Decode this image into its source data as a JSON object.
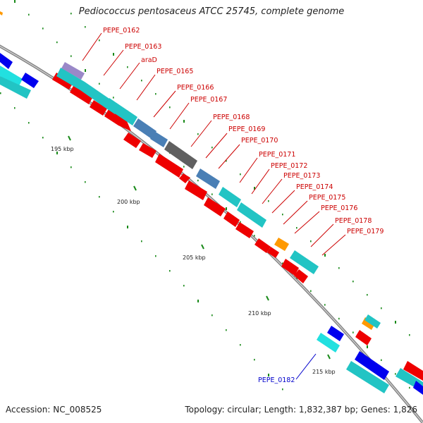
{
  "title": "Pediococcus pentosaceus ATCC 25745, complete genome",
  "footer": {
    "accession": "Accession: NC_008525",
    "summary": "Topology: circular; Length: 1,832,387 bp; Genes: 1,826"
  },
  "ticks": [
    {
      "label": "195 kbp"
    },
    {
      "label": "200 kbp"
    },
    {
      "label": "205 kbp"
    },
    {
      "label": "210 kbp"
    },
    {
      "label": "215 kbp"
    }
  ],
  "genes": [
    {
      "label": "PEPE_0162",
      "color": "#cc0000"
    },
    {
      "label": "PEPE_0163",
      "color": "#cc0000"
    },
    {
      "label": "araD",
      "color": "#cc0000"
    },
    {
      "label": "PEPE_0165",
      "color": "#cc0000"
    },
    {
      "label": "PEPE_0166",
      "color": "#cc0000"
    },
    {
      "label": "PEPE_0167",
      "color": "#cc0000"
    },
    {
      "label": "PEPE_0168",
      "color": "#cc0000"
    },
    {
      "label": "PEPE_0169",
      "color": "#cc0000"
    },
    {
      "label": "PEPE_0170",
      "color": "#cc0000"
    },
    {
      "label": "PEPE_0171",
      "color": "#cc0000"
    },
    {
      "label": "PEPE_0172",
      "color": "#cc0000"
    },
    {
      "label": "PEPE_0173",
      "color": "#cc0000"
    },
    {
      "label": "PEPE_0174",
      "color": "#cc0000"
    },
    {
      "label": "PEPE_0175",
      "color": "#cc0000"
    },
    {
      "label": "PEPE_0176",
      "color": "#cc0000"
    },
    {
      "label": "PEPE_0178",
      "color": "#cc0000"
    },
    {
      "label": "PEPE_0179",
      "color": "#cc0000"
    },
    {
      "label": "PEPE_0182",
      "color": "#0000cc"
    }
  ],
  "colors": {
    "backbone": "#808080",
    "forward_cds": "#ee0000",
    "reverse_cds": "#0000ee",
    "cyan_track": "#22c4c4",
    "steel_track": "#4a7fb5",
    "gray_track": "#606060",
    "orange_track": "#ff9900",
    "tick_green": "#1a8a1a"
  }
}
